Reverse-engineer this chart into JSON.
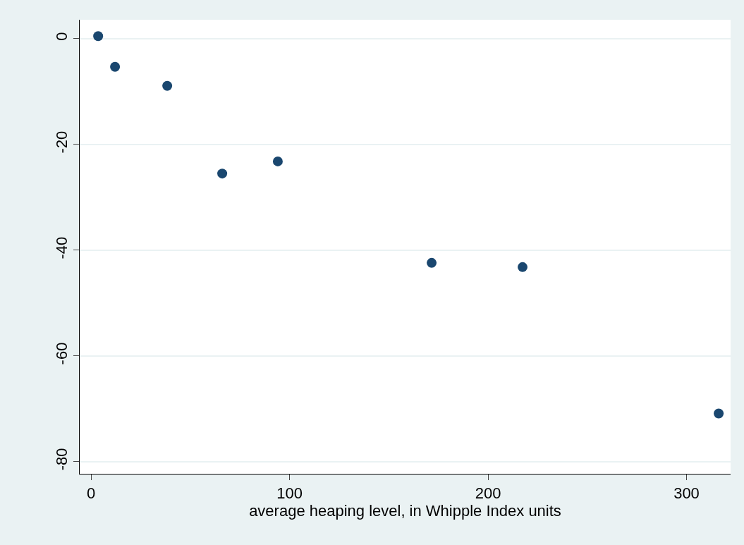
{
  "chart_data": {
    "type": "scatter",
    "xlabel": "average heaping level, in Whipple Index units",
    "x": [
      3.6,
      12.1,
      38.4,
      66.1,
      94.1,
      171.6,
      217.4,
      316.2
    ],
    "series": [
      {
        "color": "#1a476f",
        "values": [
          0.5,
          -5.3,
          -8.9,
          -25.5,
          -23.2,
          -42.4,
          -43.2,
          -70.9
        ]
      }
    ],
    "xlim": [
      -5.7,
      322.2
    ],
    "ylim": [
      -82.3,
      3.6
    ],
    "xticks": [
      0,
      100,
      200,
      300
    ],
    "yticks": [
      -80,
      -60,
      -40,
      -20,
      0
    ],
    "grid": "y",
    "marker": "circle"
  }
}
